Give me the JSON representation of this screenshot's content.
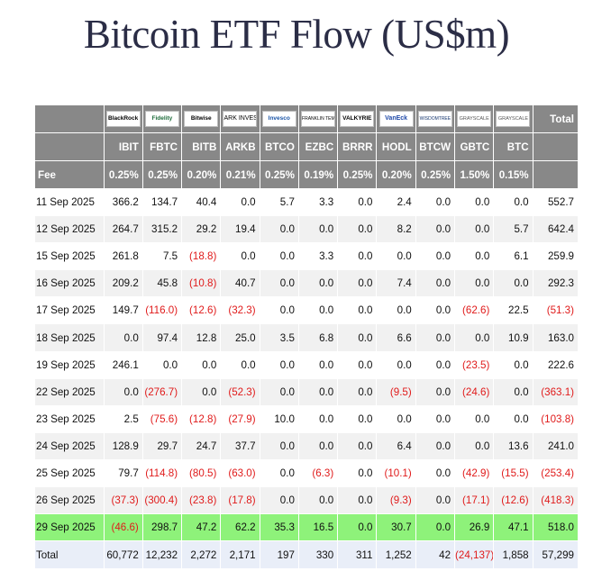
{
  "page": {
    "title": "Bitcoin ETF Flow (US$m)"
  },
  "colors": {
    "header_bg": "#888888",
    "row_alt": "#f1f1f1",
    "highlight_row": "#8ef27a",
    "total_row": "#e9eef8",
    "negative": "#e01b1b"
  },
  "chart_data": {
    "type": "table",
    "title": "Bitcoin ETF Flow (US$m)",
    "logos": [
      "BlackRock",
      "Fidelity",
      "Bitwise",
      "ARK INVEST",
      "Invesco",
      "FRANKLIN TEMPLETON",
      "VALKYRIE",
      "VanEck",
      "WISDOMTREE",
      "GRAYSCALE",
      "GRAYSCALE"
    ],
    "total_header": "Total",
    "tickers": [
      "IBIT",
      "FBTC",
      "BITB",
      "ARKB",
      "BTCO",
      "EZBC",
      "BRRR",
      "HODL",
      "BTCW",
      "GBTC",
      "BTC"
    ],
    "fee_label": "Fee",
    "fees": [
      "0.25%",
      "0.25%",
      "0.20%",
      "0.21%",
      "0.25%",
      "0.19%",
      "0.25%",
      "0.20%",
      "0.25%",
      "1.50%",
      "0.15%"
    ],
    "rows": [
      {
        "date": "11 Sep 2025",
        "values": [
          "366.2",
          "134.7",
          "40.4",
          "0.0",
          "5.7",
          "3.3",
          "0.0",
          "2.4",
          "0.0",
          "0.0",
          "0.0"
        ],
        "total": "552.7"
      },
      {
        "date": "12 Sep 2025",
        "values": [
          "264.7",
          "315.2",
          "29.2",
          "19.4",
          "0.0",
          "0.0",
          "0.0",
          "8.2",
          "0.0",
          "0.0",
          "5.7"
        ],
        "total": "642.4"
      },
      {
        "date": "15 Sep 2025",
        "values": [
          "261.8",
          "7.5",
          "(18.8)",
          "0.0",
          "0.0",
          "3.3",
          "0.0",
          "0.0",
          "0.0",
          "0.0",
          "6.1"
        ],
        "total": "259.9"
      },
      {
        "date": "16 Sep 2025",
        "values": [
          "209.2",
          "45.8",
          "(10.8)",
          "40.7",
          "0.0",
          "0.0",
          "0.0",
          "7.4",
          "0.0",
          "0.0",
          "0.0"
        ],
        "total": "292.3"
      },
      {
        "date": "17 Sep 2025",
        "values": [
          "149.7",
          "(116.0)",
          "(12.6)",
          "(32.3)",
          "0.0",
          "0.0",
          "0.0",
          "0.0",
          "0.0",
          "(62.6)",
          "22.5"
        ],
        "total": "(51.3)"
      },
      {
        "date": "18 Sep 2025",
        "values": [
          "0.0",
          "97.4",
          "12.8",
          "25.0",
          "3.5",
          "6.8",
          "0.0",
          "6.6",
          "0.0",
          "0.0",
          "10.9"
        ],
        "total": "163.0"
      },
      {
        "date": "19 Sep 2025",
        "values": [
          "246.1",
          "0.0",
          "0.0",
          "0.0",
          "0.0",
          "0.0",
          "0.0",
          "0.0",
          "0.0",
          "(23.5)",
          "0.0"
        ],
        "total": "222.6"
      },
      {
        "date": "22 Sep 2025",
        "values": [
          "0.0",
          "(276.7)",
          "0.0",
          "(52.3)",
          "0.0",
          "0.0",
          "0.0",
          "(9.5)",
          "0.0",
          "(24.6)",
          "0.0"
        ],
        "total": "(363.1)"
      },
      {
        "date": "23 Sep 2025",
        "values": [
          "2.5",
          "(75.6)",
          "(12.8)",
          "(27.9)",
          "10.0",
          "0.0",
          "0.0",
          "0.0",
          "0.0",
          "0.0",
          "0.0"
        ],
        "total": "(103.8)"
      },
      {
        "date": "24 Sep 2025",
        "values": [
          "128.9",
          "29.7",
          "24.7",
          "37.7",
          "0.0",
          "0.0",
          "0.0",
          "6.4",
          "0.0",
          "0.0",
          "13.6"
        ],
        "total": "241.0"
      },
      {
        "date": "25 Sep 2025",
        "values": [
          "79.7",
          "(114.8)",
          "(80.5)",
          "(63.0)",
          "0.0",
          "(6.3)",
          "0.0",
          "(10.1)",
          "0.0",
          "(42.9)",
          "(15.5)"
        ],
        "total": "(253.4)"
      },
      {
        "date": "26 Sep 2025",
        "values": [
          "(37.3)",
          "(300.4)",
          "(23.8)",
          "(17.8)",
          "0.0",
          "0.0",
          "0.0",
          "(9.3)",
          "0.0",
          "(17.1)",
          "(12.6)"
        ],
        "total": "(418.3)"
      },
      {
        "date": "29 Sep 2025",
        "values": [
          "(46.6)",
          "298.7",
          "47.2",
          "62.2",
          "35.3",
          "16.5",
          "0.0",
          "30.7",
          "0.0",
          "26.9",
          "47.1"
        ],
        "total": "518.0",
        "highlight": true
      }
    ],
    "total_row": {
      "label": "Total",
      "values": [
        "60,772",
        "12,232",
        "2,272",
        "2,171",
        "197",
        "330",
        "311",
        "1,252",
        "42",
        "(24,137)",
        "1,858"
      ],
      "total": "57,299"
    }
  }
}
